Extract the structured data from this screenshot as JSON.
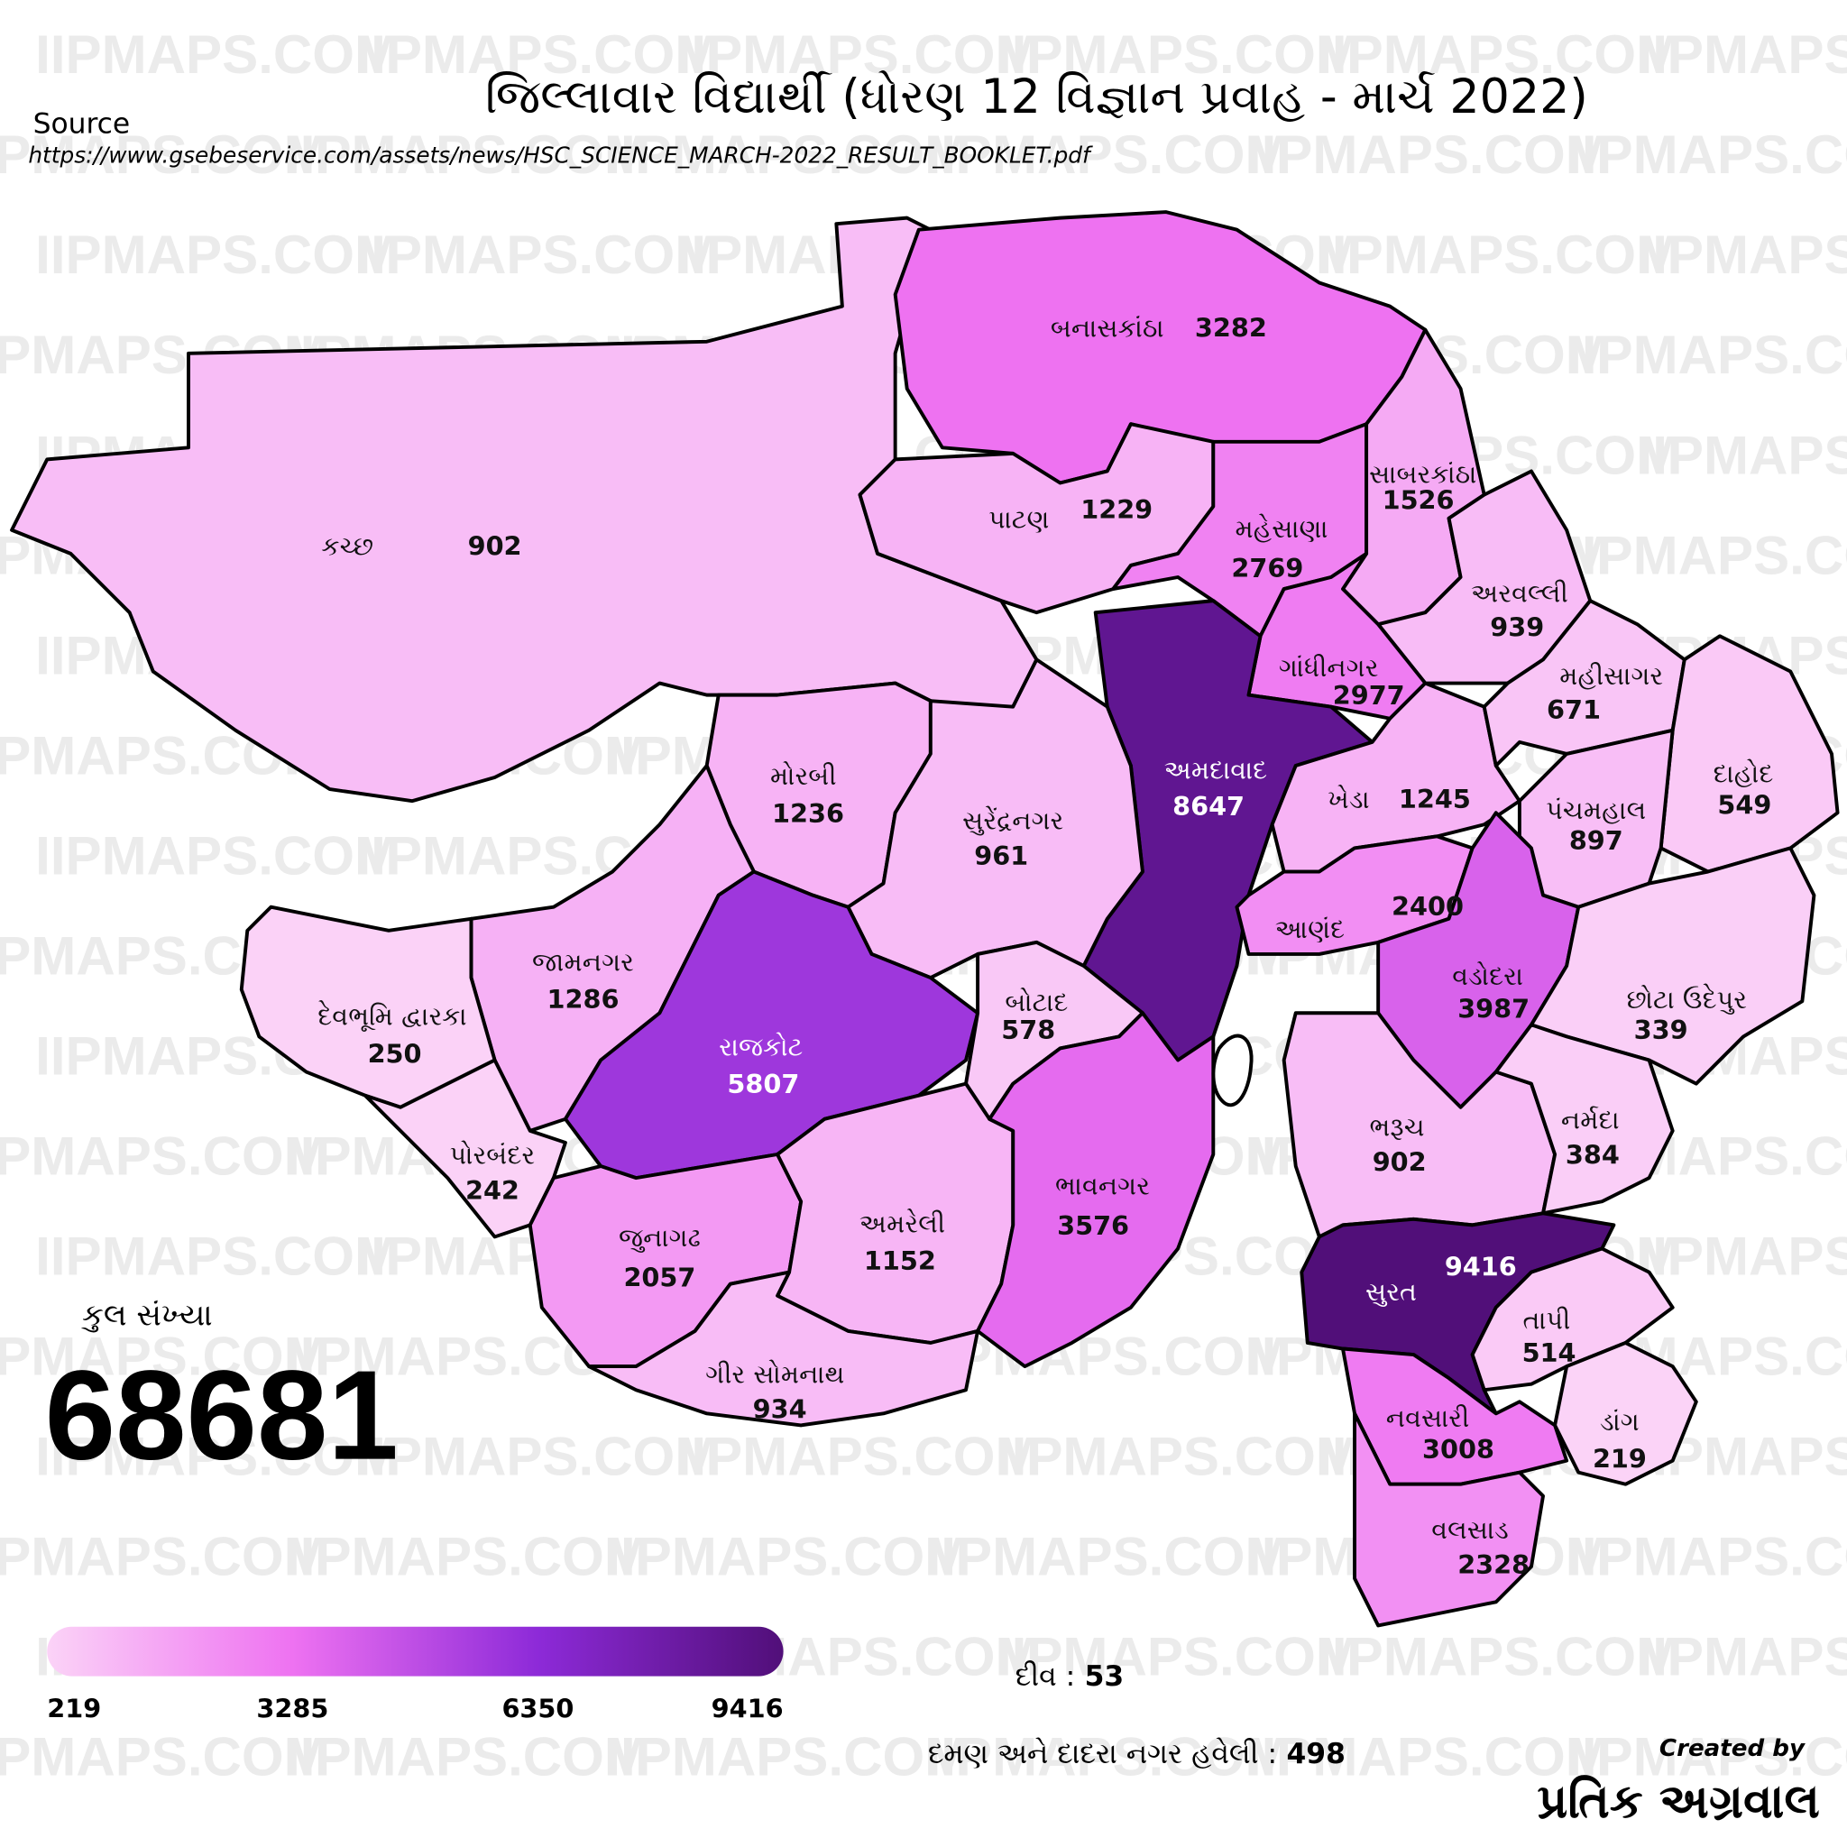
{
  "title": "જિલ્લાવાર વિદ્યાર્થી (ધોરણ 12 વિજ્ઞાન પ્રવાહ - માર્ચ 2022)",
  "source": {
    "label": "Source",
    "url": "https://www.gsebeservice.com/assets/news/HSC_SCIENCE_MARCH-2022_RESULT_BOOKLET.pdf"
  },
  "districts": [
    {
      "name": "કચ્છ",
      "value": 902
    },
    {
      "name": "બનાસકાંઠા",
      "value": 3282
    },
    {
      "name": "પાટણ",
      "value": 1229
    },
    {
      "name": "મહેસાણા",
      "value": 2769
    },
    {
      "name": "સાબરકાંઠા",
      "value": 1526
    },
    {
      "name": "અરવલ્લી",
      "value": 939
    },
    {
      "name": "ગાંધીનગર",
      "value": 2977
    },
    {
      "name": "અમદાવાદ",
      "value": 8647
    },
    {
      "name": "ખેડા",
      "value": 1245
    },
    {
      "name": "આણંદ",
      "value": 2400
    },
    {
      "name": "મહીસાગર",
      "value": 671
    },
    {
      "name": "દાહોદ",
      "value": 549
    },
    {
      "name": "પંચમહાલ",
      "value": 897
    },
    {
      "name": "વડોદરા",
      "value": 3987
    },
    {
      "name": "છોટા ઉદેપુર",
      "value": 339
    },
    {
      "name": "ભરૂચ",
      "value": 902
    },
    {
      "name": "નર્મદા",
      "value": 384
    },
    {
      "name": "સુરત",
      "value": 9416
    },
    {
      "name": "તાપી",
      "value": 514
    },
    {
      "name": "ડાંગ",
      "value": 219
    },
    {
      "name": "નવસારી",
      "value": 3008
    },
    {
      "name": "વલસાડ",
      "value": 2328
    },
    {
      "name": "મોરબી",
      "value": 1236
    },
    {
      "name": "સુરેંદ્રનગર",
      "value": 961
    },
    {
      "name": "જામનગર",
      "value": 1286
    },
    {
      "name": "દેવભૂમિ દ્વારકા",
      "value": 250
    },
    {
      "name": "પોરબંદર",
      "value": 242
    },
    {
      "name": "રાજકોટ",
      "value": 5807
    },
    {
      "name": "બોટાદ",
      "value": 578
    },
    {
      "name": "જુનાગઢ",
      "value": 2057
    },
    {
      "name": "અમરેલી",
      "value": 1152
    },
    {
      "name": "ગીર સોમનાથ",
      "value": 934
    },
    {
      "name": "ભાવનગર",
      "value": 3576
    }
  ],
  "total": {
    "label": "કુલ સંખ્યા",
    "value": 68681
  },
  "legend": {
    "stops": [
      219,
      3285,
      6350,
      9416
    ],
    "colors": [
      "#fbd3f7",
      "#ee72f1",
      "#8d2ad8",
      "#510f79"
    ]
  },
  "notes": [
    {
      "label": "દીવ :",
      "value": 53
    },
    {
      "label": "દમણ અને દાદરા નગર હવેલી :",
      "value": 498
    }
  ],
  "credit": {
    "label": "Created by",
    "name": "પ્રતિક અગ્રવાલ"
  },
  "watermark": "IIPMAPS.COM"
}
